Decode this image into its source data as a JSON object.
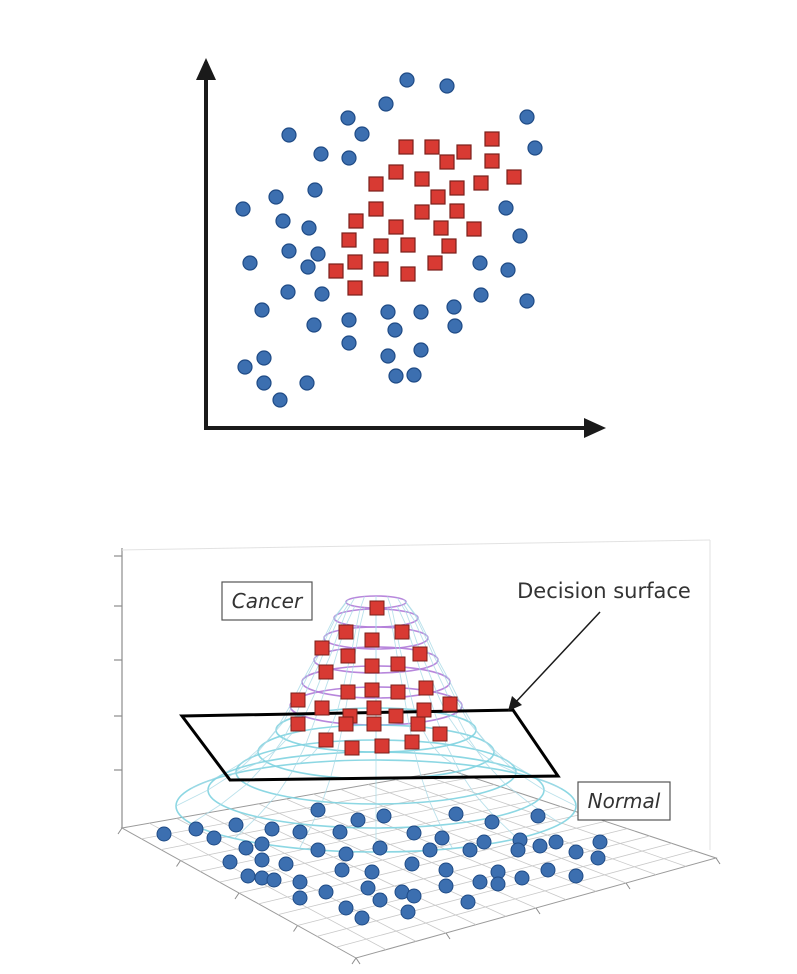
{
  "colors": {
    "blue_dot": "#3c6fb0",
    "blue_dot_edge": "#1f4b86",
    "red_square": "#d83a33",
    "red_square_edge": "#7a1f1a",
    "axis": "#1a1a1a",
    "mesh_purple": "#b07ad8",
    "mesh_cyan": "#7fd3e0",
    "grid": "#c8c8c8",
    "plane": "#000000"
  },
  "diagram_3d": {
    "label_cancer": "Cancer",
    "label_normal": "Normal",
    "label_decision_surface": "Decision surface"
  }
}
